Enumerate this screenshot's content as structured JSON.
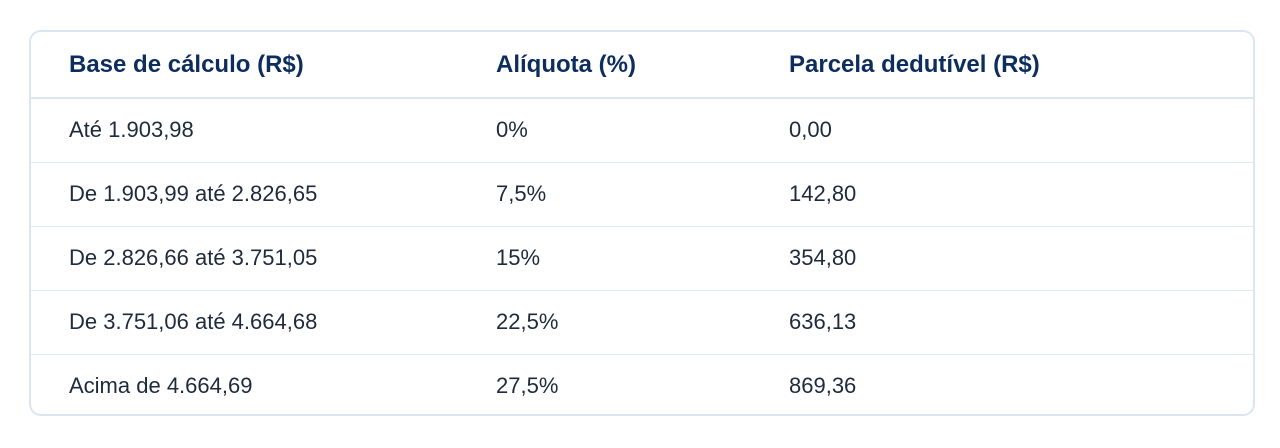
{
  "table": {
    "headers": [
      "Base de cálculo (R$)",
      "Alíquota (%)",
      "Parcela dedutível (R$)"
    ],
    "rows": [
      [
        "Até 1.903,98",
        "0%",
        "0,00"
      ],
      [
        "De 1.903,99 até 2.826,65",
        "7,5%",
        "142,80"
      ],
      [
        "De 2.826,66 até 3.751,05",
        "15%",
        "354,80"
      ],
      [
        "De 3.751,06 até 4.664,68",
        "22,5%",
        "636,13"
      ],
      [
        "Acima de 4.664,69",
        "27,5%",
        "869,36"
      ]
    ]
  },
  "colors": {
    "header_text": "#0d2d5e",
    "body_text": "#1e2b3c",
    "border": "#dbe6f3"
  }
}
